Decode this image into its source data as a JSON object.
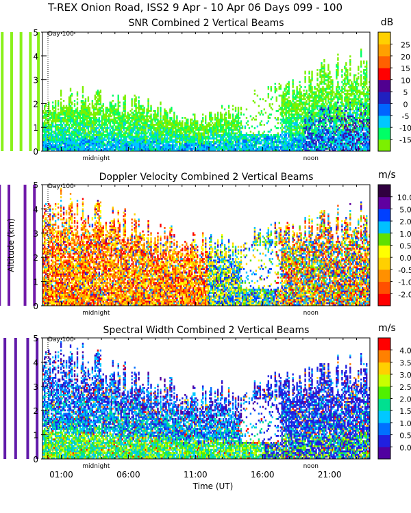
{
  "header": {
    "title": "T-REX Onion Road, ISS2    9 Apr - 10 Apr 06 Days 099 - 100"
  },
  "chart_data": [
    {
      "type": "heatmap",
      "title": "SNR Combined 2 Vertical Beams",
      "ylabel": "",
      "xlabel": "",
      "ylim": [
        0,
        5
      ],
      "yticks": [
        "0",
        "1",
        "2",
        "3",
        "4",
        "5"
      ],
      "day_marker": "Day 100",
      "annotations": [
        "midnight",
        "noon"
      ],
      "colorbar": {
        "unit": "dB",
        "tick_labels": [
          "-15",
          "-10",
          "-5",
          "0",
          "5",
          "10",
          "15",
          "20",
          "25"
        ],
        "colors": [
          "#7cf000",
          "#00ff66",
          "#00c8ff",
          "#0064ff",
          "#2020c0",
          "#500090",
          "#ff0000",
          "#ff6000",
          "#ffa000",
          "#ffd000"
        ]
      },
      "field": {
        "kind": "snr",
        "max_alt_km": [
          2.0,
          2.1,
          2.2,
          2.2,
          2.1,
          2.0,
          1.9,
          1.9,
          1.8,
          1.6,
          1.4,
          1.3,
          1.4,
          1.6,
          1.8,
          2.0,
          2.2,
          2.4,
          2.6,
          2.8,
          3.0,
          3.2,
          3.4,
          3.5
        ],
        "streak_hours": [
          2.2,
          2.8,
          3.3,
          4.1,
          5.0,
          16.7,
          17.6,
          18.9,
          19.4,
          20.1,
          20.6,
          21.3,
          22.0,
          22.7,
          23.3
        ]
      }
    },
    {
      "type": "heatmap",
      "title": "Doppler Velocity Combined 2 Vertical Beams",
      "ylabel": "Altitude (km)",
      "xlabel": "",
      "ylim": [
        0,
        5
      ],
      "yticks": [
        "0",
        "1",
        "2",
        "3",
        "4",
        "5"
      ],
      "day_marker": "Day 100",
      "annotations": [
        "midnight",
        "noon"
      ],
      "colorbar": {
        "unit": "m/s",
        "tick_labels": [
          "-2.0",
          "-1.0",
          "-0.5",
          "0.0",
          "0.5",
          "1.0",
          "2.0",
          "5.0",
          "10.0"
        ],
        "colors": [
          "#ff0000",
          "#ff5000",
          "#ff9000",
          "#ffd000",
          "#ffff00",
          "#60e000",
          "#00c0ff",
          "#0040ff",
          "#6000a0",
          "#300040"
        ]
      },
      "field": {
        "kind": "doppler",
        "max_alt_km": [
          4.3,
          4.1,
          3.9,
          3.7,
          3.6,
          3.4,
          3.2,
          3.0,
          2.8,
          2.7,
          2.6,
          2.5,
          2.6,
          2.5,
          2.4,
          2.5,
          2.8,
          2.9,
          3.0,
          3.1,
          3.2,
          3.3,
          3.4,
          3.5
        ],
        "streak_hours": [
          0.6,
          19.0,
          20.4,
          21.1,
          22.3,
          23.0
        ]
      }
    },
    {
      "type": "heatmap",
      "title": "Spectral Width Combined 2 Vertical Beams",
      "ylabel": "",
      "xlabel": "Time (UT)",
      "ylim": [
        0,
        5
      ],
      "yticks": [
        "0",
        "1",
        "2",
        "3",
        "4",
        "5"
      ],
      "xticks": [
        "01:00",
        "06:00",
        "11:00",
        "16:00",
        "21:00"
      ],
      "day_marker": "Day 100",
      "annotations": [
        "midnight",
        "noon"
      ],
      "colorbar": {
        "unit": "m/s",
        "tick_labels": [
          "0.0",
          "0.5",
          "1.0",
          "1.5",
          "2.0",
          "2.5",
          "3.0",
          "3.5",
          "4.0"
        ],
        "colors": [
          "#5000a0",
          "#2020e0",
          "#0070ff",
          "#00c8ff",
          "#00e090",
          "#50f000",
          "#c8ff00",
          "#ffd000",
          "#ff8000",
          "#ff0000"
        ]
      },
      "field": {
        "kind": "width",
        "max_alt_km": [
          4.5,
          4.3,
          4.1,
          3.9,
          3.7,
          3.4,
          3.2,
          3.0,
          2.9,
          2.8,
          2.6,
          2.5,
          2.6,
          2.7,
          2.5,
          2.6,
          2.8,
          3.0,
          3.1,
          3.2,
          3.3,
          3.4,
          3.5,
          3.6
        ],
        "streak_hours": [
          3.9,
          17.9,
          18.8,
          19.6,
          20.8,
          21.6,
          22.5,
          23.2
        ]
      }
    }
  ]
}
